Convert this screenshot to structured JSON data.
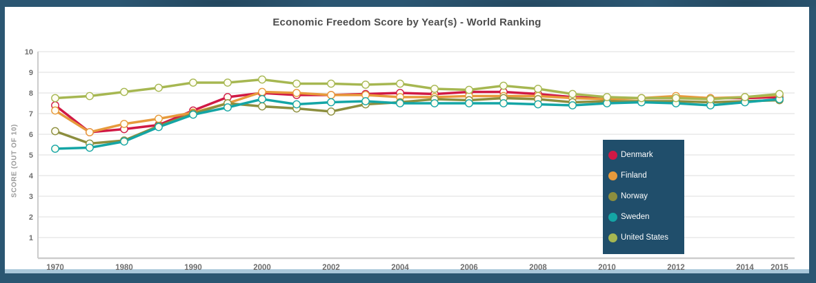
{
  "window": {
    "frame_color": "#2b5672",
    "panel_color": "#ffffff",
    "bottom_strip_color": "#a9c7da",
    "legend_bg": "#204e6b",
    "gridline_color": "#e8e8e8",
    "axis_color": "#cccccc",
    "tick_text_color": "#6e6e6e",
    "title_color": "#4d4d4d"
  },
  "chart_data": {
    "type": "line",
    "title": "Economic Freedom Score by Year(s) - World Ranking",
    "xlabel": "",
    "ylabel": "SCORE (OUT OF 10)",
    "ylim": [
      0,
      10
    ],
    "yticks": [
      1,
      2,
      3,
      4,
      5,
      6,
      7,
      8,
      9,
      10
    ],
    "grid": true,
    "legend_position": "overlay-right",
    "x": [
      "1970",
      "1975",
      "1980",
      "1985",
      "1990",
      "1995",
      "2000",
      "2001",
      "2002",
      "2003",
      "2004",
      "2005",
      "2006",
      "2007",
      "2008",
      "2009",
      "2010",
      "2011",
      "2012",
      "2013",
      "2014",
      "2015"
    ],
    "xtick_labels": [
      "1970",
      "1980",
      "1990",
      "2000",
      "2002",
      "2004",
      "2006",
      "2008",
      "2010",
      "2012",
      "2014",
      "2015"
    ],
    "xtick_indices": [
      0,
      2,
      4,
      6,
      8,
      10,
      12,
      14,
      16,
      18,
      20,
      21
    ],
    "marker": {
      "shape": "circle",
      "fill": "#fffdf2"
    },
    "series": [
      {
        "name": "Denmark",
        "color": "#d01945",
        "values": [
          7.4,
          6.1,
          6.25,
          6.45,
          7.15,
          7.8,
          8.0,
          7.9,
          7.9,
          7.95,
          8.0,
          7.95,
          8.05,
          8.05,
          7.95,
          7.8,
          7.75,
          7.75,
          7.75,
          7.75,
          7.75,
          7.8
        ]
      },
      {
        "name": "Finland",
        "color": "#e79a3c",
        "values": [
          7.15,
          6.1,
          6.5,
          6.75,
          7.05,
          7.5,
          8.05,
          8.0,
          7.9,
          7.9,
          7.8,
          7.8,
          7.85,
          7.85,
          7.85,
          7.75,
          7.7,
          7.75,
          7.85,
          7.75,
          7.8,
          7.9
        ]
      },
      {
        "name": "Norway",
        "color": "#8c8e3e",
        "values": [
          6.15,
          5.55,
          5.7,
          6.4,
          7.0,
          7.5,
          7.35,
          7.25,
          7.1,
          7.45,
          7.55,
          7.7,
          7.65,
          7.75,
          7.7,
          7.55,
          7.6,
          7.6,
          7.6,
          7.55,
          7.6,
          7.65
        ]
      },
      {
        "name": "Sweden",
        "color": "#14a5a5",
        "values": [
          5.3,
          5.35,
          5.65,
          6.35,
          6.95,
          7.3,
          7.7,
          7.45,
          7.55,
          7.6,
          7.5,
          7.5,
          7.5,
          7.5,
          7.45,
          7.4,
          7.5,
          7.55,
          7.5,
          7.4,
          7.55,
          7.7
        ]
      },
      {
        "name": "United States",
        "color": "#a6b751",
        "values": [
          7.75,
          7.85,
          8.05,
          8.25,
          8.5,
          8.5,
          8.65,
          8.45,
          8.45,
          8.4,
          8.45,
          8.2,
          8.15,
          8.35,
          8.2,
          7.95,
          7.8,
          7.75,
          7.75,
          7.7,
          7.8,
          7.95
        ]
      }
    ]
  }
}
